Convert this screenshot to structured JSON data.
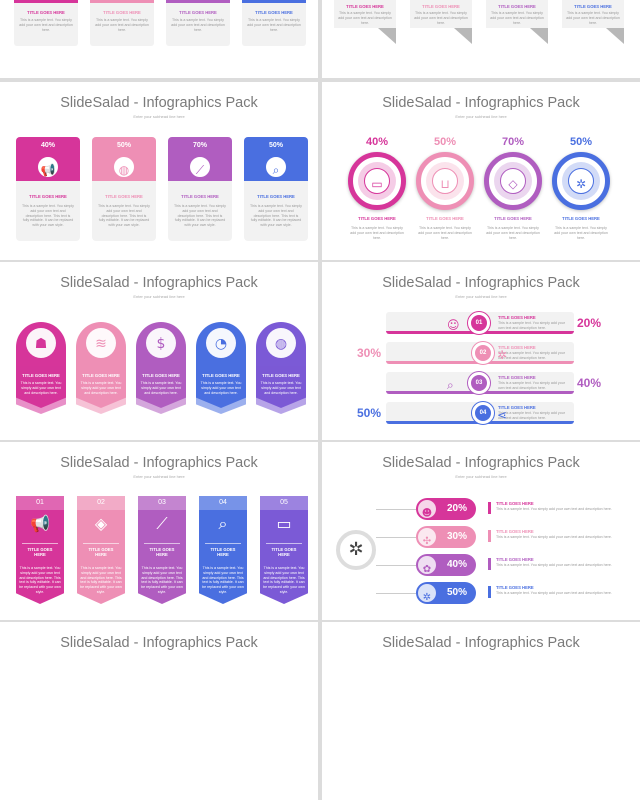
{
  "slide_title": "SlideSalad - Infographics Pack",
  "slide_subtitle": "Enter your subhead line here",
  "card_title": "TITLE GOES HERE",
  "card_title_split": [
    "TITLE GOES",
    "HERE"
  ],
  "body_text": "This is a sample text. You simply add your own text and description here. This text is fully editable. It can be replaced with your own style.",
  "body_short": "This is a sample text. You simply add your own text and description here.",
  "colors": {
    "magenta": "#d6359a",
    "pink": "#ee8fb5",
    "orchid": "#b05dc0",
    "blue": "#4a6fe0",
    "violet": "#7b5ad6",
    "grey": "#f2f2f2"
  },
  "slide_a": {
    "pcts": [
      "40%",
      "50%",
      "70%",
      "50%"
    ],
    "icons": [
      "megaphone-icon",
      "globe-icon",
      "line-chart-icon",
      "search-icon"
    ]
  },
  "slide_b": {
    "pcts": [
      "40%",
      "50%",
      "70%",
      "50%"
    ],
    "icons": [
      "chat-icon",
      "cart-icon",
      "tag-icon",
      "gear-icon"
    ]
  },
  "slide_c": {
    "icons": [
      "people-icon",
      "coins-icon",
      "dollar-icon",
      "pie-chart-icon",
      "globe-icon"
    ]
  },
  "slide_d": {
    "nums": [
      "01",
      "02",
      "03",
      "04"
    ],
    "pcts": [
      "20%",
      "30%",
      "40%",
      "50%"
    ],
    "icons": [
      "user-icon",
      "gear-icon",
      "search-icon",
      "share-icon"
    ]
  },
  "slide_e": {
    "nums": [
      "01",
      "02",
      "03",
      "04",
      "05"
    ],
    "icons": [
      "megaphone-icon",
      "layers-icon",
      "line-chart-icon",
      "search-icon",
      "chat-icon"
    ]
  },
  "slide_f": {
    "pcts": [
      "20%",
      "30%",
      "40%",
      "50%"
    ],
    "icons": [
      "head-icon",
      "puzzle-icon",
      "brain-icon",
      "gear-icon"
    ]
  }
}
